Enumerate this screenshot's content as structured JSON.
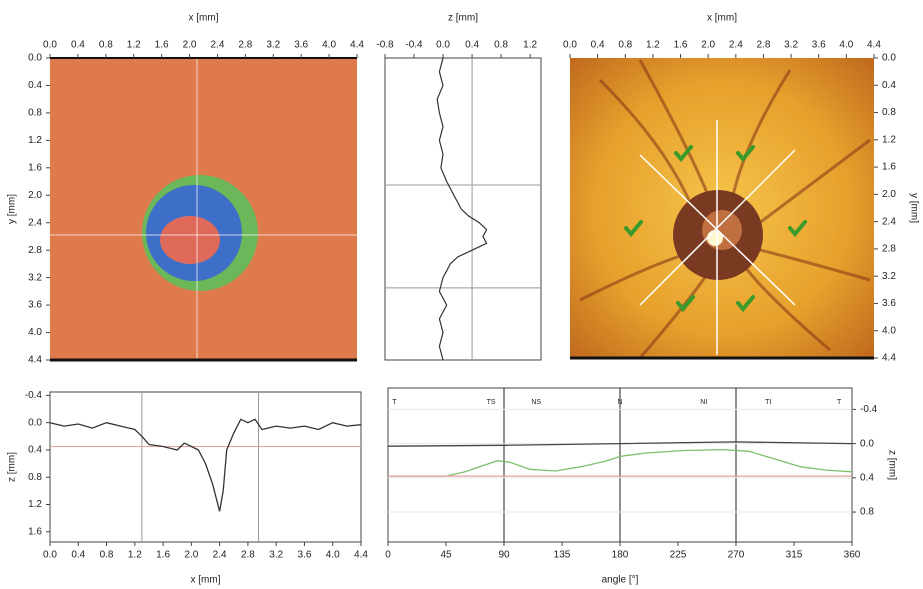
{
  "chart_data": [
    {
      "type": "image",
      "x_label": "x [mm]",
      "y_label": "y [mm]",
      "xlim": [
        0,
        4.4
      ],
      "ylim": [
        4.4,
        0
      ],
      "xticks": [
        {
          "value": 0,
          "label": "0.0"
        },
        0.4,
        0.8,
        1.2,
        1.6,
        {
          "value": 2,
          "label": "2.0"
        },
        2.4,
        2.8,
        3.2,
        3.6,
        {
          "value": 4,
          "label": "4.0"
        },
        4.4
      ],
      "yticks": [
        {
          "value": 0,
          "label": "0.0"
        },
        0.4,
        0.8,
        1.2,
        1.6,
        {
          "value": 2,
          "label": "2.0"
        },
        2.4,
        2.8,
        3.2,
        3.6,
        {
          "value": 4,
          "label": "4.0"
        },
        4.4
      ]
    },
    {
      "type": "profile",
      "x_label": "z [mm]",
      "xlim": [
        -0.8,
        1.35
      ],
      "ylim": [
        4.4,
        0
      ],
      "xticks": [
        -0.8,
        -0.4,
        {
          "value": 0,
          "label": "0.0"
        },
        0.4,
        0.8,
        1.2
      ],
      "y": [
        0,
        0.2,
        0.4,
        0.6,
        0.8,
        1.0,
        1.2,
        1.4,
        1.6,
        1.8,
        1.9,
        2.0,
        2.1,
        2.2,
        2.3,
        2.4,
        2.5,
        2.6,
        2.7,
        2.8,
        2.9,
        3.0,
        3.1,
        3.2,
        3.4,
        3.6,
        3.8,
        4.0,
        4.2,
        4.4
      ],
      "values": [
        0.0,
        -0.05,
        0.0,
        -0.08,
        -0.05,
        0.0,
        -0.05,
        0.0,
        -0.03,
        0.05,
        0.1,
        0.15,
        0.2,
        0.25,
        0.35,
        0.5,
        0.6,
        0.55,
        0.6,
        0.4,
        0.2,
        0.1,
        0.05,
        0.0,
        -0.05,
        0.05,
        -0.05,
        0.0,
        -0.05,
        0.0
      ],
      "color": "#333333",
      "reference_lines": {
        "x": [
          0.4
        ],
        "y": [
          1.85,
          3.35
        ]
      }
    },
    {
      "type": "image",
      "x_label": "x [mm]",
      "y_label": "y [mm]",
      "xlim": [
        0,
        4.4
      ],
      "ylim": [
        4.4,
        0
      ],
      "xticks": [
        {
          "value": 0,
          "label": "0.0"
        },
        0.4,
        0.8,
        1.2,
        1.6,
        {
          "value": 2,
          "label": "2.0"
        },
        2.4,
        2.8,
        3.2,
        3.6,
        {
          "value": 4,
          "label": "4.0"
        },
        4.4
      ],
      "yticks": [
        {
          "value": 0,
          "label": "0.0"
        },
        0.4,
        0.8,
        1.2,
        1.6,
        {
          "value": 2,
          "label": "2.0"
        },
        2.4,
        2.8,
        3.2,
        3.6,
        {
          "value": 4,
          "label": "4.0"
        },
        4.4
      ]
    },
    {
      "type": "line",
      "x_label": "x [mm]",
      "y_label": "z [mm]",
      "xlim": [
        0,
        4.4
      ],
      "ylim": [
        1.75,
        -0.45
      ],
      "xticks": [
        {
          "value": 0,
          "label": "0.0"
        },
        0.4,
        0.8,
        1.2,
        1.6,
        {
          "value": 2,
          "label": "2.0"
        },
        2.4,
        2.8,
        3.2,
        3.6,
        {
          "value": 4,
          "label": "4.0"
        },
        4.4
      ],
      "yticks": [
        -0.4,
        {
          "value": 0,
          "label": "0.0"
        },
        0.4,
        0.8,
        1.2,
        1.6
      ],
      "series": [
        {
          "color": "#333333",
          "x": [
            0,
            0.2,
            0.4,
            0.6,
            0.8,
            1.0,
            1.2,
            1.3,
            1.4,
            1.6,
            1.8,
            1.9,
            2.0,
            2.1,
            2.2,
            2.3,
            2.35,
            2.4,
            2.45,
            2.5,
            2.6,
            2.7,
            2.8,
            2.9,
            3.0,
            3.2,
            3.4,
            3.6,
            3.8,
            4.0,
            4.2,
            4.4
          ],
          "values": [
            0.0,
            0.05,
            0.02,
            0.08,
            0.0,
            0.05,
            0.1,
            0.2,
            0.32,
            0.35,
            0.4,
            0.3,
            0.35,
            0.4,
            0.6,
            0.9,
            1.1,
            1.3,
            1.0,
            0.4,
            0.15,
            -0.05,
            0.0,
            -0.05,
            0.1,
            0.05,
            0.08,
            0.05,
            0.1,
            0.0,
            0.05,
            0.03
          ]
        }
      ],
      "reference_lines": {
        "x": [
          1.3,
          2.95
        ],
        "y": [
          0.35
        ]
      }
    },
    {
      "type": "line",
      "x_label": "angle [°]",
      "y_label": "z [mm]",
      "xlim": [
        0,
        360
      ],
      "ylim": [
        1.15,
        -0.65
      ],
      "xticks": [
        0,
        45,
        90,
        135,
        180,
        225,
        270,
        315,
        360
      ],
      "yticks": [
        -0.4,
        {
          "value": 0,
          "label": "0.0"
        },
        0.4,
        0.8
      ],
      "series": [
        {
          "color": "#7fbf6a",
          "x": [
            0,
            45,
            60,
            75,
            85,
            95,
            110,
            130,
            150,
            170,
            180,
            200,
            230,
            260,
            280,
            300,
            320,
            340,
            360
          ],
          "values": [
            0.38,
            0.38,
            0.33,
            0.25,
            0.2,
            0.22,
            0.3,
            0.32,
            0.27,
            0.2,
            0.15,
            0.11,
            0.08,
            0.07,
            0.09,
            0.18,
            0.27,
            0.31,
            0.33
          ]
        },
        {
          "color": "#444444",
          "x": [
            0,
            90,
            180,
            270,
            360
          ],
          "values": [
            0.03,
            0.02,
            0.0,
            -0.02,
            0.0
          ]
        },
        {
          "color": "#e8a0a0",
          "x": [
            0,
            360
          ],
          "values": [
            0.38,
            0.38
          ]
        }
      ],
      "reference_lines": {
        "x": [
          90,
          180,
          270
        ],
        "y": []
      },
      "annotations": [
        {
          "x": 5,
          "text": "T"
        },
        {
          "x": 80,
          "text": "TS"
        },
        {
          "x": 115,
          "text": "NS"
        },
        {
          "x": 180,
          "text": "N"
        },
        {
          "x": 245,
          "text": "NI"
        },
        {
          "x": 295,
          "text": "TI"
        },
        {
          "x": 350,
          "text": "T"
        }
      ]
    }
  ]
}
